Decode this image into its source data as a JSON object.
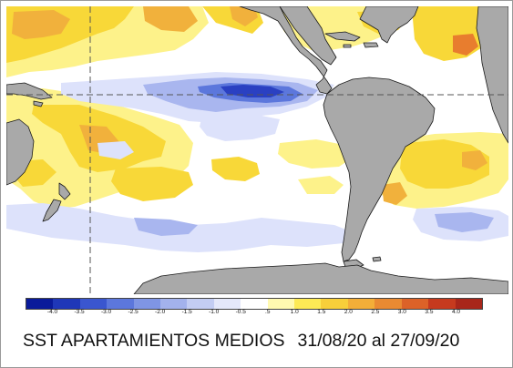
{
  "caption": {
    "title": "SST APARTAMIENTOS MEDIOS",
    "period": "31/08/20 al 27/09/20"
  },
  "colorbar": {
    "ticks": [
      "-4.0",
      "-3.5",
      "-3.0",
      "-2.5",
      "-2.0",
      "-1.5",
      "-1.0",
      "-0.5",
      ".5",
      "1.0",
      "1.5",
      "2.0",
      "2.5",
      "3.0",
      "3.5",
      "4.0"
    ],
    "colors": [
      "#0a1a9a",
      "#1f37b8",
      "#3a56cf",
      "#5c77dc",
      "#7f95e4",
      "#a3b2ec",
      "#c3cdf3",
      "#e4e8fa",
      "#ffffff",
      "#fff9b0",
      "#fdea55",
      "#f8cf3a",
      "#f3ae38",
      "#e98a32",
      "#dc6228",
      "#c63a1e",
      "#a8261a"
    ]
  },
  "map": {
    "colors": {
      "ocean": "#ffffff",
      "land": "#a9a9a9",
      "coast": "#1a1a1a",
      "warm_light": "#fdf28a",
      "warm": "#f8d838",
      "warm_strong": "#f1b13c",
      "hot": "#e87d2e",
      "cool_light": "#dde2fb",
      "cool": "#a9b6ef",
      "cold": "#2a40c2",
      "gridline": "#555555"
    }
  }
}
